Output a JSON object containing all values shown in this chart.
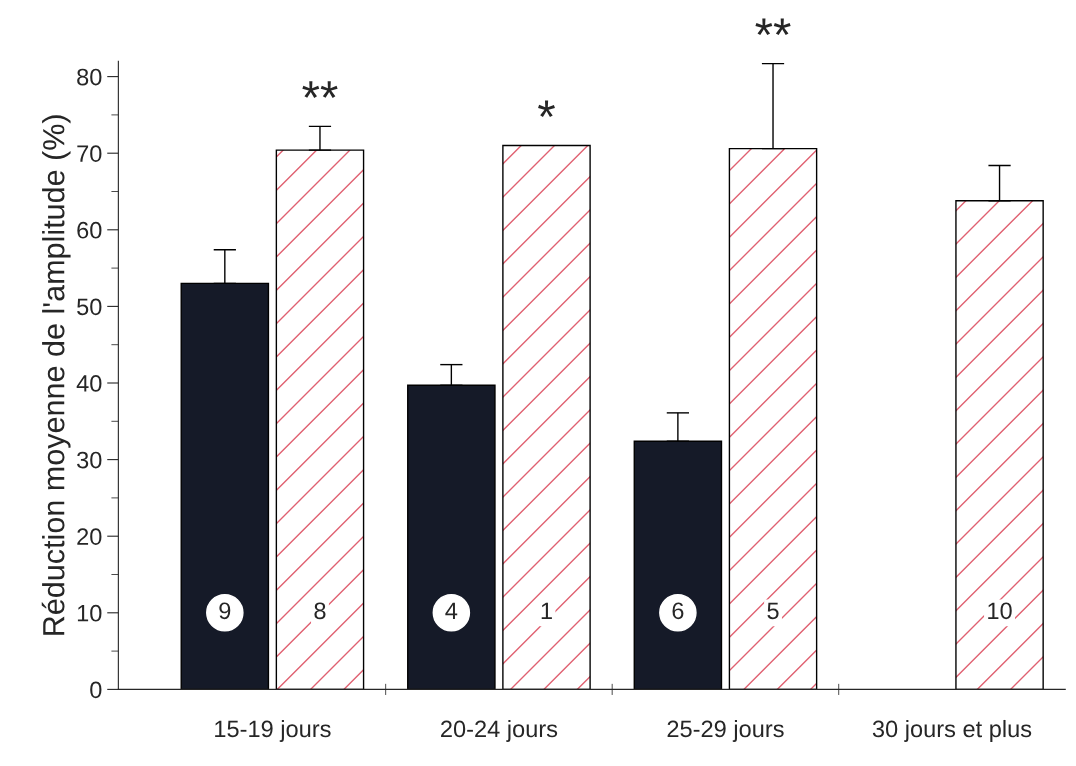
{
  "chart_data": {
    "type": "bar",
    "ylabel": "Réduction moyenne de l'amplitude (%)",
    "categories": [
      "15-19 jours",
      "20-24 jours",
      "25-29 jours",
      "30 jours et plus"
    ],
    "series": [
      {
        "color": "#151a28",
        "values": [
          53.0,
          39.7,
          32.4,
          null
        ],
        "errors": [
          [
            53.0,
            57.4
          ],
          [
            39.7,
            42.4
          ],
          [
            32.4,
            36.1
          ],
          null
        ]
      },
      {
        "color": "#e06070",
        "values": [
          70.4,
          71.0,
          70.6,
          63.8
        ],
        "errors": [
          [
            70.4,
            73.5
          ],
          null,
          [
            70.6,
            81.7
          ],
          [
            63.8,
            68.4
          ]
        ]
      }
    ],
    "ylim": [
      0,
      82
    ],
    "yticks": [
      0,
      10,
      20,
      30,
      40,
      50,
      60,
      70,
      80
    ],
    "grid": false,
    "legend": false,
    "annotations": [
      {
        "text": "9",
        "x": "15-19 jours",
        "y": 10
      },
      {
        "text": "8",
        "x": "15-19 jours",
        "y": 10
      },
      {
        "text": "4",
        "x": "20-24 jours",
        "y": 10
      },
      {
        "text": "1",
        "x": "20-24 jours",
        "y": 10
      },
      {
        "text": "6",
        "x": "25-29 jours",
        "y": 10
      },
      {
        "text": "5",
        "x": "25-29 jours",
        "y": 10
      },
      {
        "text": "10",
        "x": "30 jours et plus",
        "y": 10
      },
      {
        "text": "**",
        "x": "15-19 jours",
        "y": 70.4
      },
      {
        "text": "*",
        "x": "20-24 jours",
        "y": 71.0
      },
      {
        "text": "**",
        "x": "25-29 jours",
        "y": 70.6
      }
    ]
  }
}
